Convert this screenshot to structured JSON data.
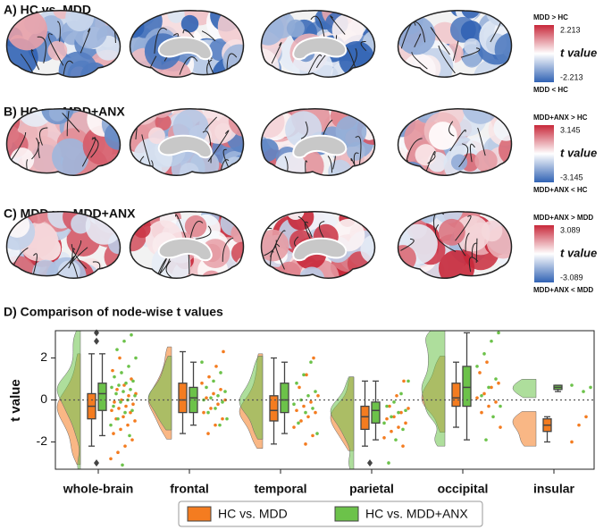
{
  "panels": [
    {
      "title": "A) HC vs. MDD",
      "colorbar": {
        "top_label": "MDD > HC",
        "max": 2.213,
        "label": "t value",
        "min": -2.213,
        "bottom_label": "MDD < HC"
      }
    },
    {
      "title": "B) HC vs. MDD+ANX",
      "colorbar": {
        "top_label": "MDD+ANX > HC",
        "max": 3.145,
        "label": "t value",
        "min": -3.145,
        "bottom_label": "MDD+ANX < HC"
      }
    },
    {
      "title": "C) MDD vs. MDD+ANX",
      "colorbar": {
        "top_label": "MDD+ANX > MDD",
        "max": 3.089,
        "label": "t value",
        "min": -3.089,
        "bottom_label": "MDD+ANX < MDD"
      }
    }
  ],
  "chart_data": {
    "type": "raincloud",
    "title": "D) Comparison of node-wise t values",
    "ylabel": "t value",
    "categories": [
      "whole-brain",
      "frontal",
      "temporal",
      "parietal",
      "occipital",
      "insular"
    ],
    "ylim": [
      -3.3,
      3.3
    ],
    "yticks": [
      -2,
      0,
      2
    ],
    "reference_line": 0,
    "series": [
      {
        "name": "HC vs. MDD",
        "color": "#f47c20",
        "boxes": [
          {
            "min": -2.2,
            "q1": -0.9,
            "median": -0.3,
            "q3": 0.3,
            "max": 2.2,
            "outliers": []
          },
          {
            "min": -1.6,
            "q1": -0.6,
            "median": 0.0,
            "q3": 0.8,
            "max": 2.3,
            "outliers": []
          },
          {
            "min": -2.1,
            "q1": -1.0,
            "median": -0.5,
            "q3": 0.2,
            "max": 2.0,
            "outliers": []
          },
          {
            "min": -2.2,
            "q1": -1.4,
            "median": -0.8,
            "q3": -0.3,
            "max": 0.9,
            "outliers": []
          },
          {
            "min": -1.3,
            "q1": -0.3,
            "median": 0.1,
            "q3": 0.8,
            "max": 1.8,
            "outliers": []
          },
          {
            "min": -2.0,
            "q1": -1.5,
            "median": -1.2,
            "q3": -0.9,
            "max": -0.8,
            "outliers": []
          }
        ],
        "points": [
          [
            -2.8,
            -2.5,
            -2.2,
            -1.9,
            -1.6,
            -1.4,
            -1.2,
            -1.0,
            -0.9,
            -0.8,
            -0.6,
            -0.5,
            -0.4,
            -0.3,
            -0.2,
            -0.1,
            0.0,
            0.2,
            0.3,
            0.5,
            0.7,
            1.0,
            1.4,
            2.0
          ],
          [
            -1.6,
            -1.2,
            -0.9,
            -0.6,
            -0.4,
            -0.2,
            0.0,
            0.1,
            0.3,
            0.5,
            0.8,
            1.1,
            1.6,
            2.3
          ],
          [
            -2.1,
            -1.7,
            -1.3,
            -1.0,
            -0.8,
            -0.6,
            -0.5,
            -0.3,
            -0.1,
            0.2,
            0.6,
            1.2,
            2.0
          ],
          [
            -2.2,
            -1.8,
            -1.5,
            -1.3,
            -1.1,
            -0.9,
            -0.8,
            -0.6,
            -0.4,
            -0.3,
            0.2,
            0.9
          ],
          [
            -1.3,
            -0.6,
            -0.3,
            -0.1,
            0.1,
            0.3,
            0.6,
            0.8,
            1.3,
            1.8
          ],
          [
            -2.0,
            -1.2,
            -0.8
          ]
        ]
      },
      {
        "name": "HC vs. MDD+ANX",
        "color": "#6cc24a",
        "boxes": [
          {
            "min": -1.7,
            "q1": -0.5,
            "median": 0.3,
            "q3": 0.8,
            "max": 2.2,
            "outliers": [
              2.8,
              3.2,
              -3.0
            ]
          },
          {
            "min": -1.2,
            "q1": -0.6,
            "median": 0.1,
            "q3": 0.6,
            "max": 1.8,
            "outliers": []
          },
          {
            "min": -1.6,
            "q1": -0.6,
            "median": 0.0,
            "q3": 0.8,
            "max": 1.8,
            "outliers": []
          },
          {
            "min": -1.9,
            "q1": -1.1,
            "median": -0.5,
            "q3": -0.1,
            "max": 0.9,
            "outliers": [
              -3.0
            ]
          },
          {
            "min": -1.9,
            "q1": -0.3,
            "median": 0.6,
            "q3": 1.6,
            "max": 3.2,
            "outliers": []
          },
          {
            "min": 0.4,
            "q1": 0.5,
            "median": 0.6,
            "q3": 0.7,
            "max": 0.7,
            "outliers": []
          }
        ],
        "points": [
          [
            -3.1,
            -1.7,
            -1.2,
            -0.9,
            -0.6,
            -0.5,
            -0.3,
            -0.1,
            0.0,
            0.2,
            0.3,
            0.4,
            0.5,
            0.6,
            0.7,
            0.8,
            0.9,
            1.1,
            1.3,
            1.6,
            2.0,
            2.4,
            2.8,
            3.1
          ],
          [
            -1.2,
            -0.9,
            -0.6,
            -0.4,
            -0.1,
            0.0,
            0.1,
            0.2,
            0.4,
            0.6,
            0.9,
            1.3,
            1.8
          ],
          [
            -1.6,
            -1.1,
            -0.6,
            -0.4,
            -0.2,
            0.0,
            0.2,
            0.4,
            0.8,
            1.2,
            1.8
          ],
          [
            -3.0,
            -1.9,
            -1.4,
            -1.1,
            -0.8,
            -0.6,
            -0.5,
            -0.3,
            -0.1,
            0.3,
            0.9
          ],
          [
            -1.9,
            -0.8,
            -0.3,
            0.2,
            0.6,
            1.0,
            1.6,
            2.2,
            2.8,
            3.2
          ],
          [
            0.4,
            0.6,
            0.7
          ]
        ]
      }
    ]
  }
}
